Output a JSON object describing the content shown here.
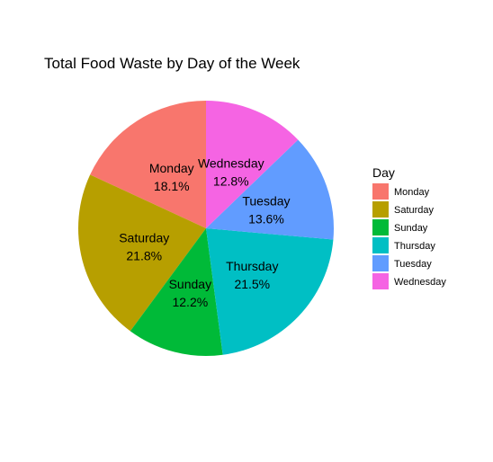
{
  "chart_data": {
    "type": "pie",
    "title": "Total Food Waste by Day of the Week",
    "legend_title": "Day",
    "legend_position": "right",
    "slices": [
      {
        "label": "Monday",
        "value": 18.1,
        "display": "18.1%",
        "color": "#F8766D"
      },
      {
        "label": "Saturday",
        "value": 21.8,
        "display": "21.8%",
        "color": "#B79F00"
      },
      {
        "label": "Sunday",
        "value": 12.2,
        "display": "12.2%",
        "color": "#00BA38"
      },
      {
        "label": "Thursday",
        "value": 21.5,
        "display": "21.5%",
        "color": "#00BFC4"
      },
      {
        "label": "Tuesday",
        "value": 13.6,
        "display": "13.6%",
        "color": "#619CFF"
      },
      {
        "label": "Wednesday",
        "value": 12.8,
        "display": "12.8%",
        "color": "#F564E3"
      }
    ]
  }
}
